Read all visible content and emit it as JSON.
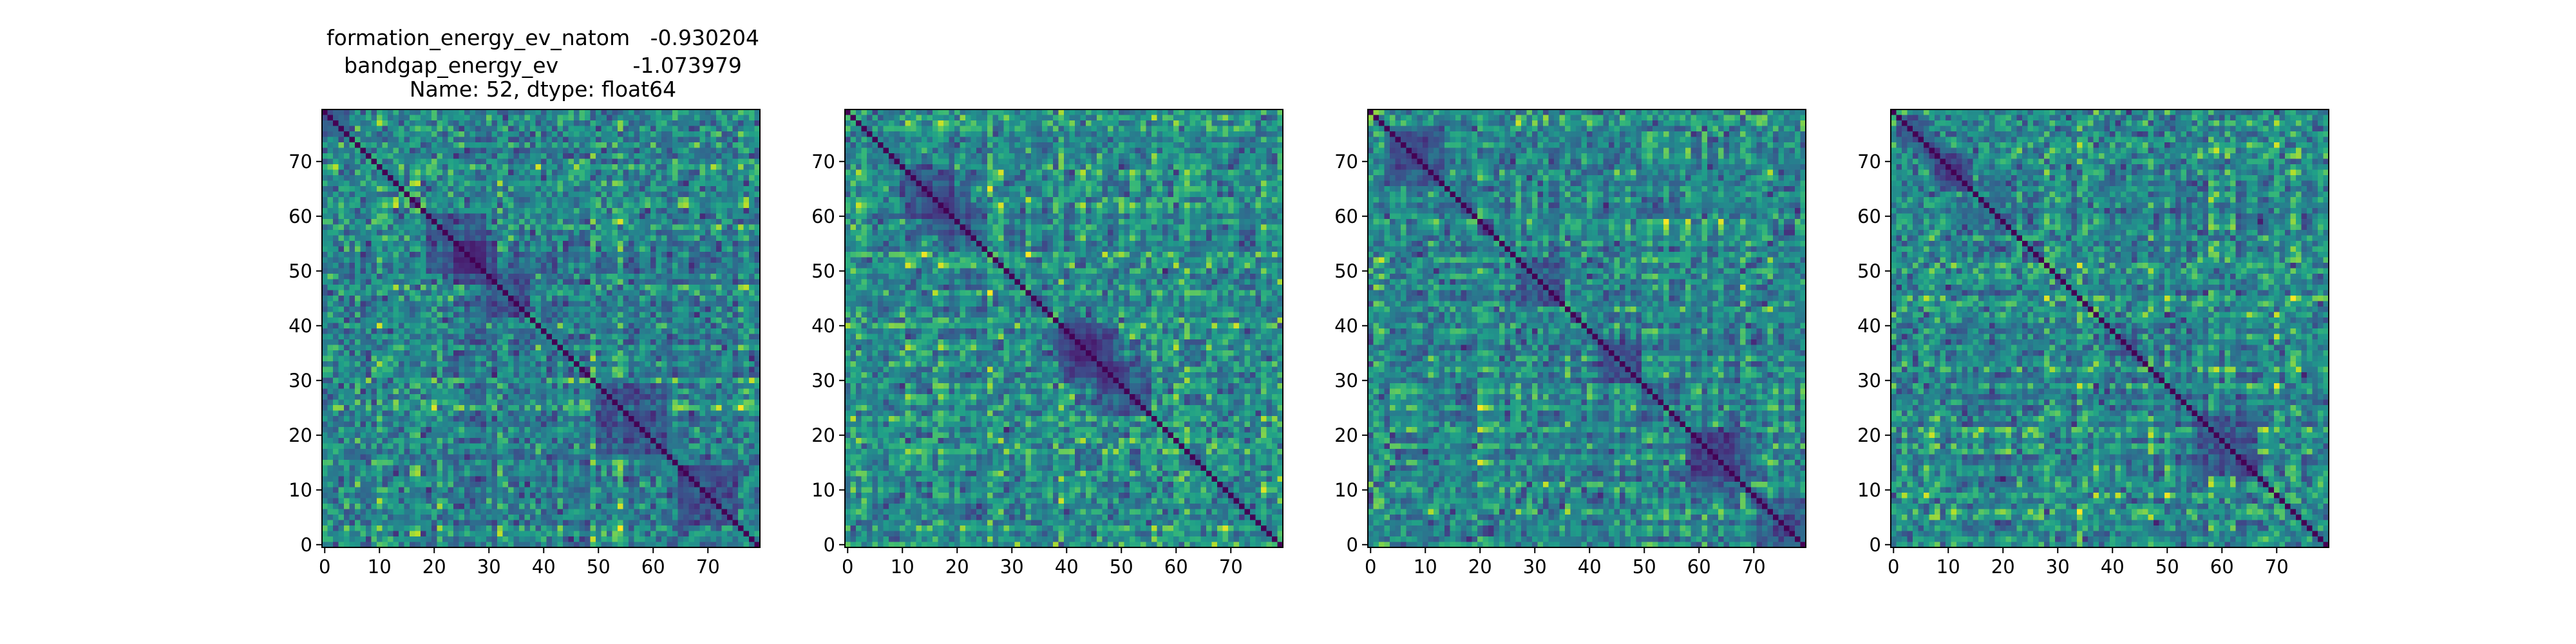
{
  "chart_data": {
    "type": "heatmap",
    "colormap": "viridis",
    "title_lines": [
      "formation_energy_ev_natom   -0.930204",
      "bandgap_energy_ev           -1.073979",
      "Name: 52, dtype: float64"
    ],
    "matrix_size": 80,
    "xticks": [
      0,
      10,
      20,
      30,
      40,
      50,
      60,
      70
    ],
    "yticks": [
      0,
      10,
      20,
      30,
      40,
      50,
      60,
      70
    ],
    "xlim": [
      -0.5,
      79.5
    ],
    "ylim": [
      79.5,
      -0.5
    ],
    "panels": [
      {
        "diagonal": 0.0,
        "value_range": [
          0,
          1
        ]
      },
      {
        "diagonal": 0.0,
        "value_range": [
          0,
          1
        ]
      },
      {
        "diagonal": 0.0,
        "value_range": [
          0,
          1
        ]
      },
      {
        "diagonal": 0.0,
        "value_range": [
          0,
          1
        ]
      }
    ]
  }
}
